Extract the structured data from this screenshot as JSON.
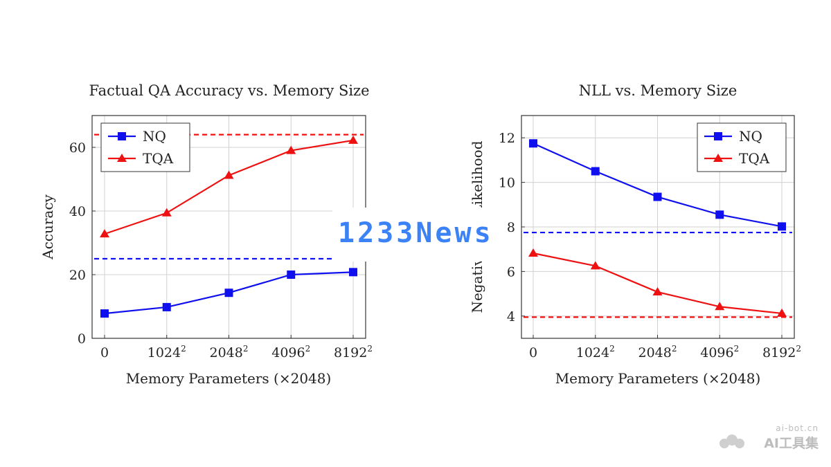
{
  "chart_data": [
    {
      "type": "line",
      "title": "Factual QA Accuracy vs. Memory Size",
      "xlabel": "Memory Parameters (×2048)",
      "ylabel": "Accuracy",
      "x_ticks": [
        "0",
        "1024",
        "2048",
        "4096",
        "8192"
      ],
      "x_ticks_exponent": "2",
      "ylim": [
        0,
        70
      ],
      "y_ticks": [
        0,
        20,
        40,
        60
      ],
      "grid": true,
      "legend_placement": "top-left",
      "series": [
        {
          "name": "NQ",
          "color": "#1010ee",
          "marker": "square",
          "values": [
            7.8,
            9.8,
            14.3,
            20.0,
            20.8
          ]
        },
        {
          "name": "TQA",
          "color": "#ee1111",
          "marker": "triangle",
          "values": [
            32.8,
            39.4,
            51.2,
            59.0,
            62.2
          ]
        }
      ],
      "reference_lines": [
        {
          "color": "#ee1111",
          "y": 64
        },
        {
          "color": "#1010ee",
          "y": 25
        }
      ]
    },
    {
      "type": "line",
      "title": "NLL vs. Memory Size",
      "xlabel": "Memory Parameters (×2048)",
      "ylabel": "Negative Log-Likelihood",
      "x_ticks": [
        "0",
        "1024",
        "2048",
        "4096",
        "8192"
      ],
      "x_ticks_exponent": "2",
      "ylim": [
        3,
        13
      ],
      "y_ticks": [
        4,
        6,
        8,
        10,
        12
      ],
      "grid": true,
      "legend_placement": "top-right",
      "series": [
        {
          "name": "NQ",
          "color": "#1010ee",
          "marker": "square",
          "values": [
            11.75,
            10.5,
            9.35,
            8.55,
            8.02
          ]
        },
        {
          "name": "TQA",
          "color": "#ee1111",
          "marker": "triangle",
          "values": [
            6.82,
            6.25,
            5.08,
            4.42,
            4.12
          ]
        }
      ],
      "reference_lines": [
        {
          "color": "#1010ee",
          "y": 7.75
        },
        {
          "color": "#ee1111",
          "y": 3.95
        }
      ]
    }
  ],
  "watermark": {
    "main": "1233News",
    "corner_line1": "ai-bot.cn",
    "corner_line2": "AI工具集"
  }
}
